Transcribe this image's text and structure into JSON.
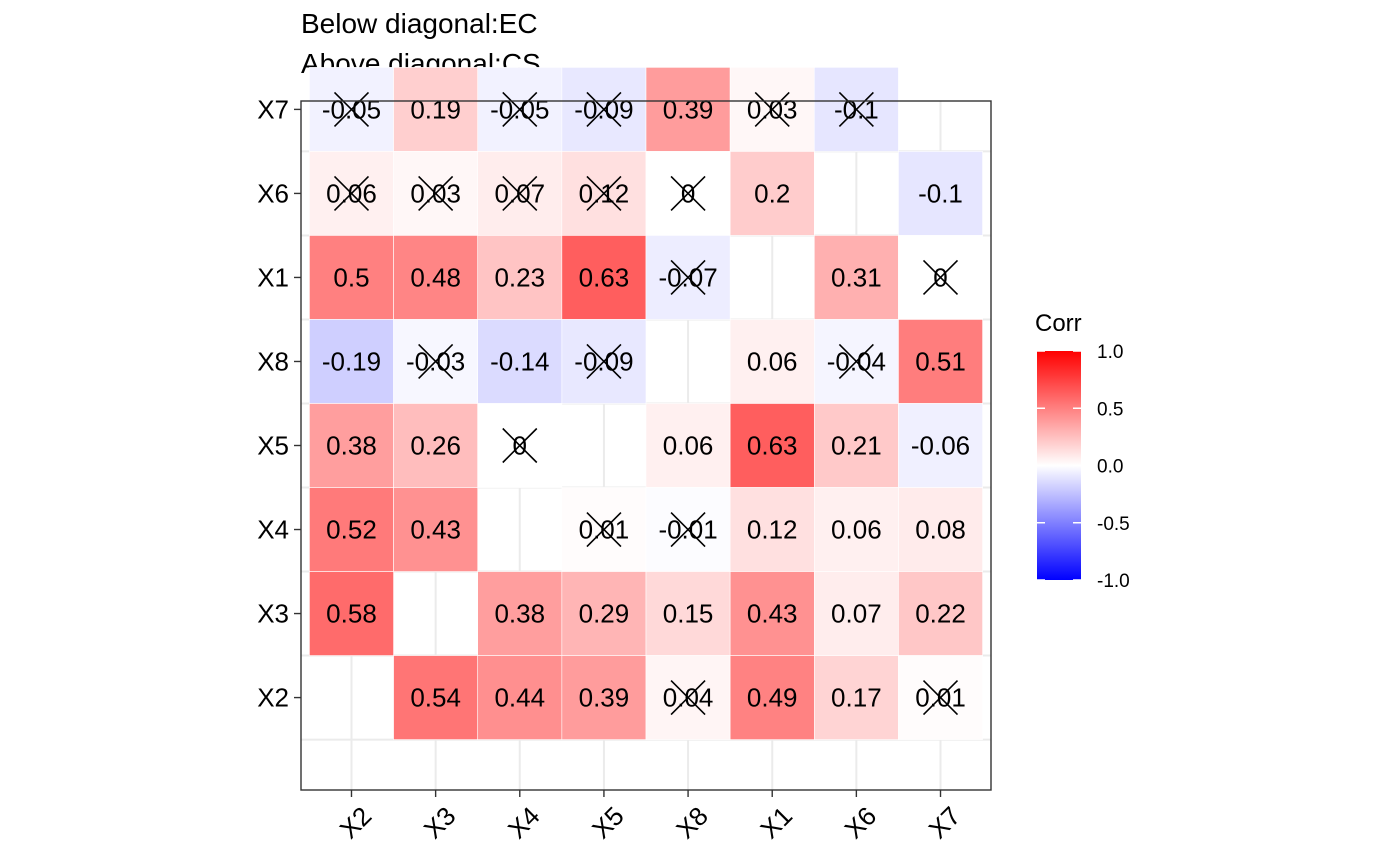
{
  "title_lines": [
    "Below diagonal:EC",
    "Above diagonal:CS"
  ],
  "chart_data": {
    "type": "heatmap",
    "x_categories": [
      "X2",
      "X3",
      "X4",
      "X5",
      "X8",
      "X1",
      "X6",
      "X7"
    ],
    "y_categories_bottom_to_top": [
      "X2",
      "X3",
      "X4",
      "X5",
      "X8",
      "X1",
      "X6",
      "X7"
    ],
    "rows": [
      {
        "y": "X7",
        "cells": [
          {
            "x": "X2",
            "value": -0.05,
            "label": "-0.05",
            "crossed": true
          },
          {
            "x": "X3",
            "value": 0.19,
            "label": "0.19",
            "crossed": false
          },
          {
            "x": "X4",
            "value": -0.05,
            "label": "-0.05",
            "crossed": true
          },
          {
            "x": "X5",
            "value": -0.09,
            "label": "-0.09",
            "crossed": true
          },
          {
            "x": "X8",
            "value": 0.39,
            "label": "0.39",
            "crossed": false
          },
          {
            "x": "X1",
            "value": 0.03,
            "label": "0.03",
            "crossed": true
          },
          {
            "x": "X6",
            "value": -0.1,
            "label": "-0.1",
            "crossed": true
          },
          {
            "x": "X7",
            "value": null,
            "label": "",
            "crossed": false
          }
        ]
      },
      {
        "y": "X6",
        "cells": [
          {
            "x": "X2",
            "value": 0.06,
            "label": "0.06",
            "crossed": true
          },
          {
            "x": "X3",
            "value": 0.03,
            "label": "0.03",
            "crossed": true
          },
          {
            "x": "X4",
            "value": 0.07,
            "label": "0.07",
            "crossed": true
          },
          {
            "x": "X5",
            "value": 0.12,
            "label": "0.12",
            "crossed": true
          },
          {
            "x": "X8",
            "value": 0,
            "label": "0",
            "crossed": true
          },
          {
            "x": "X1",
            "value": 0.2,
            "label": "0.2",
            "crossed": false
          },
          {
            "x": "X6",
            "value": null,
            "label": "",
            "crossed": false
          },
          {
            "x": "X7",
            "value": -0.1,
            "label": "-0.1",
            "crossed": false
          }
        ]
      },
      {
        "y": "X1",
        "cells": [
          {
            "x": "X2",
            "value": 0.5,
            "label": "0.5",
            "crossed": false
          },
          {
            "x": "X3",
            "value": 0.48,
            "label": "0.48",
            "crossed": false
          },
          {
            "x": "X4",
            "value": 0.23,
            "label": "0.23",
            "crossed": false
          },
          {
            "x": "X5",
            "value": 0.63,
            "label": "0.63",
            "crossed": false
          },
          {
            "x": "X8",
            "value": -0.07,
            "label": "-0.07",
            "crossed": true
          },
          {
            "x": "X1",
            "value": null,
            "label": "",
            "crossed": false
          },
          {
            "x": "X6",
            "value": 0.31,
            "label": "0.31",
            "crossed": false
          },
          {
            "x": "X7",
            "value": 0,
            "label": "0",
            "crossed": true
          }
        ]
      },
      {
        "y": "X8",
        "cells": [
          {
            "x": "X2",
            "value": -0.19,
            "label": "-0.19",
            "crossed": false
          },
          {
            "x": "X3",
            "value": -0.03,
            "label": "-0.03",
            "crossed": true
          },
          {
            "x": "X4",
            "value": -0.14,
            "label": "-0.14",
            "crossed": false
          },
          {
            "x": "X5",
            "value": -0.09,
            "label": "-0.09",
            "crossed": true
          },
          {
            "x": "X8",
            "value": null,
            "label": "",
            "crossed": false
          },
          {
            "x": "X1",
            "value": 0.06,
            "label": "0.06",
            "crossed": false
          },
          {
            "x": "X6",
            "value": -0.04,
            "label": "-0.04",
            "crossed": true
          },
          {
            "x": "X7",
            "value": 0.51,
            "label": "0.51",
            "crossed": false
          }
        ]
      },
      {
        "y": "X5",
        "cells": [
          {
            "x": "X2",
            "value": 0.38,
            "label": "0.38",
            "crossed": false
          },
          {
            "x": "X3",
            "value": 0.26,
            "label": "0.26",
            "crossed": false
          },
          {
            "x": "X4",
            "value": 0,
            "label": "0",
            "crossed": true
          },
          {
            "x": "X5",
            "value": null,
            "label": "",
            "crossed": false
          },
          {
            "x": "X8",
            "value": 0.06,
            "label": "0.06",
            "crossed": false
          },
          {
            "x": "X1",
            "value": 0.63,
            "label": "0.63",
            "crossed": false
          },
          {
            "x": "X6",
            "value": 0.21,
            "label": "0.21",
            "crossed": false
          },
          {
            "x": "X7",
            "value": -0.06,
            "label": "-0.06",
            "crossed": false
          }
        ]
      },
      {
        "y": "X4",
        "cells": [
          {
            "x": "X2",
            "value": 0.52,
            "label": "0.52",
            "crossed": false
          },
          {
            "x": "X3",
            "value": 0.43,
            "label": "0.43",
            "crossed": false
          },
          {
            "x": "X4",
            "value": null,
            "label": "",
            "crossed": false
          },
          {
            "x": "X5",
            "value": 0.01,
            "label": "0.01",
            "crossed": true
          },
          {
            "x": "X8",
            "value": -0.01,
            "label": "-0.01",
            "crossed": true
          },
          {
            "x": "X1",
            "value": 0.12,
            "label": "0.12",
            "crossed": false
          },
          {
            "x": "X6",
            "value": 0.06,
            "label": "0.06",
            "crossed": false
          },
          {
            "x": "X7",
            "value": 0.08,
            "label": "0.08",
            "crossed": false
          }
        ]
      },
      {
        "y": "X3",
        "cells": [
          {
            "x": "X2",
            "value": 0.58,
            "label": "0.58",
            "crossed": false
          },
          {
            "x": "X3",
            "value": null,
            "label": "",
            "crossed": false
          },
          {
            "x": "X4",
            "value": 0.38,
            "label": "0.38",
            "crossed": false
          },
          {
            "x": "X5",
            "value": 0.29,
            "label": "0.29",
            "crossed": false
          },
          {
            "x": "X8",
            "value": 0.15,
            "label": "0.15",
            "crossed": false
          },
          {
            "x": "X1",
            "value": 0.43,
            "label": "0.43",
            "crossed": false
          },
          {
            "x": "X6",
            "value": 0.07,
            "label": "0.07",
            "crossed": false
          },
          {
            "x": "X7",
            "value": 0.22,
            "label": "0.22",
            "crossed": false
          }
        ]
      },
      {
        "y": "X2",
        "cells": [
          {
            "x": "X2",
            "value": null,
            "label": "",
            "crossed": false
          },
          {
            "x": "X3",
            "value": 0.54,
            "label": "0.54",
            "crossed": false
          },
          {
            "x": "X4",
            "value": 0.44,
            "label": "0.44",
            "crossed": false
          },
          {
            "x": "X5",
            "value": 0.39,
            "label": "0.39",
            "crossed": false
          },
          {
            "x": "X8",
            "value": 0.04,
            "label": "0.04",
            "crossed": true
          },
          {
            "x": "X1",
            "value": 0.49,
            "label": "0.49",
            "crossed": false
          },
          {
            "x": "X6",
            "value": 0.17,
            "label": "0.17",
            "crossed": false
          },
          {
            "x": "X7",
            "value": 0.01,
            "label": "0.01",
            "crossed": true
          }
        ]
      }
    ],
    "legend": {
      "title": "Corr",
      "position": "right",
      "range": [
        -1.0,
        1.0
      ],
      "ticks": [
        1.0,
        0.5,
        0.0,
        -0.5,
        -1.0
      ],
      "tick_labels": [
        "1.0",
        "0.5",
        "0.0",
        "-0.5",
        "-1.0"
      ]
    },
    "colors": {
      "low": "#0000ff",
      "mid": "#ffffff",
      "high": "#ff0000"
    },
    "grid": true
  }
}
